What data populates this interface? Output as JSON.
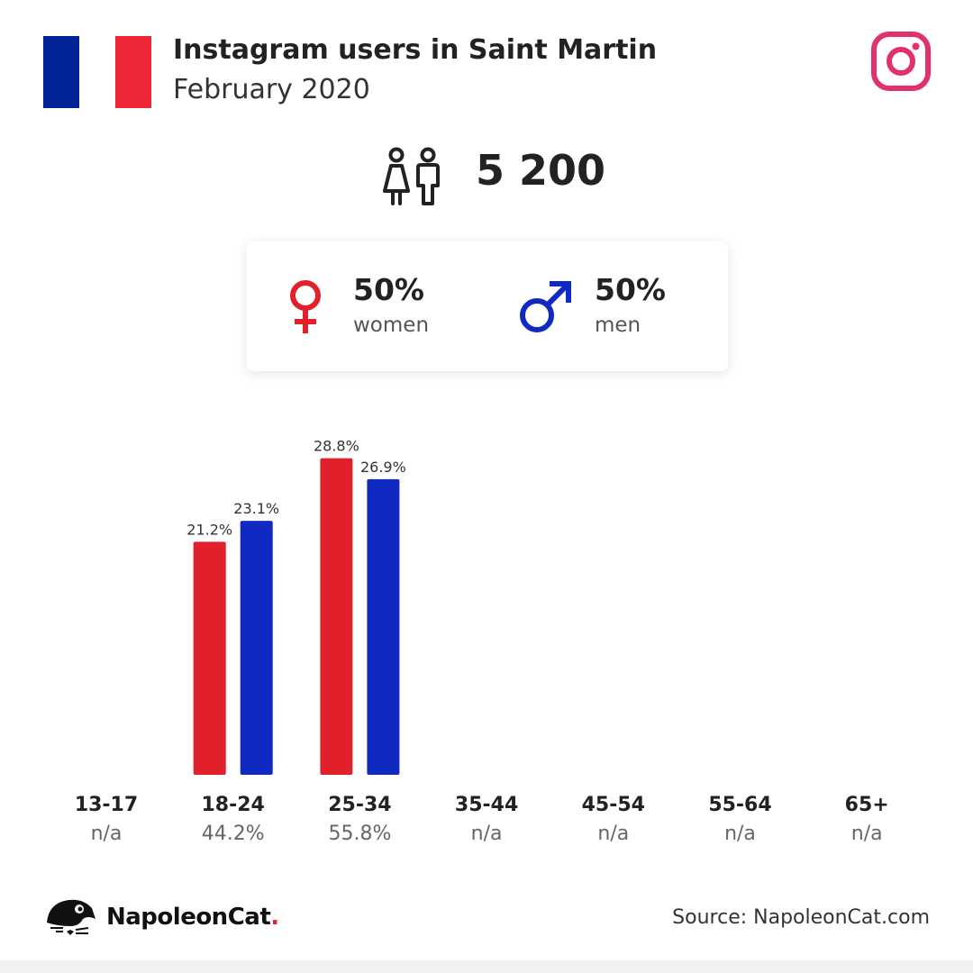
{
  "header": {
    "title": "Instagram users in Saint Martin",
    "subtitle": "February 2020",
    "flag_colors": [
      "#002395",
      "#ffffff",
      "#ED2939"
    ],
    "flag_icon": "france-flag-icon",
    "platform_icon": "instagram-icon",
    "platform_color": "#E1306C"
  },
  "total": {
    "icon": "people-icon",
    "value": "5 200"
  },
  "gender": {
    "women": {
      "percent": "50%",
      "label": "women",
      "color": "#E0202A",
      "icon": "female-symbol-icon"
    },
    "men": {
      "percent": "50%",
      "label": "men",
      "color": "#1029C0",
      "icon": "male-symbol-icon"
    }
  },
  "chart_data": {
    "type": "bar",
    "categories": [
      "13-17",
      "18-24",
      "25-34",
      "35-44",
      "45-54",
      "55-64",
      "65+"
    ],
    "category_totals": [
      "n/a",
      "44.2%",
      "55.8%",
      "n/a",
      "n/a",
      "n/a",
      "n/a"
    ],
    "series": [
      {
        "name": "women",
        "color": "#E0202A",
        "values": [
          null,
          21.2,
          28.8,
          null,
          null,
          null,
          null
        ]
      },
      {
        "name": "men",
        "color": "#1029C0",
        "values": [
          null,
          23.1,
          26.9,
          null,
          null,
          null,
          null
        ]
      }
    ],
    "value_format": "percent",
    "grid": false,
    "title": "",
    "xlabel": "",
    "ylabel": ""
  },
  "footer": {
    "logo_icon": "napoleoncat-logo-icon",
    "brand": "NapoleonCat",
    "brand_dot": ".",
    "source": "Source: NapoleonCat.com"
  }
}
